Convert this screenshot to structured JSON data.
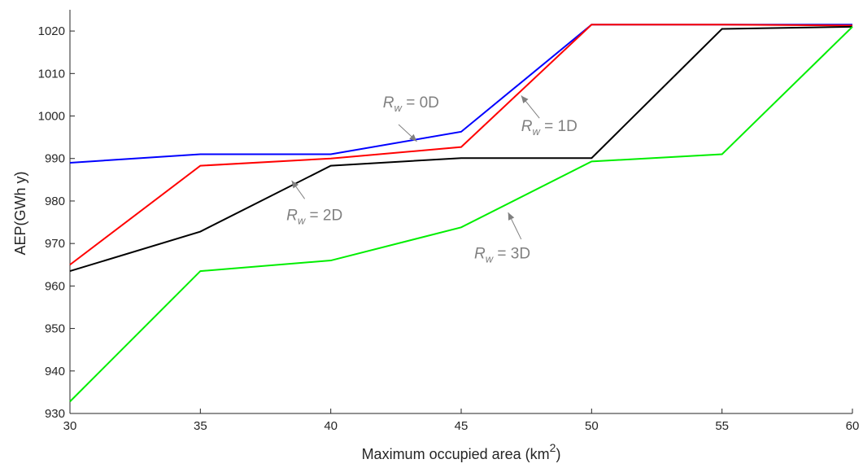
{
  "chart_data": {
    "type": "line",
    "x": [
      30,
      35,
      40,
      45,
      50,
      55,
      60
    ],
    "x_ticks": [
      "30",
      "35",
      "40",
      "45",
      "50",
      "55",
      "60"
    ],
    "y_ticks": [
      "930",
      "940",
      "950",
      "960",
      "970",
      "980",
      "990",
      "1000",
      "1010",
      "1020"
    ],
    "xlim": [
      30,
      60
    ],
    "ylim": [
      930,
      1025
    ],
    "xlabel": "Maximum occupied area (km",
    "xlabel_sup": "2",
    "xlabel_end": ")",
    "ylabel": "AEP(GWh y)",
    "grid": false,
    "series": [
      {
        "color": "#0000ff",
        "values": [
          989.0,
          991.0,
          991.0,
          996.3,
          1021.5,
          1021.5,
          1021.5
        ]
      },
      {
        "color": "#ff0000",
        "values": [
          965.0,
          988.3,
          990.0,
          992.7,
          1021.5,
          1021.5,
          1021.3
        ]
      },
      {
        "color": "#000000",
        "values": [
          963.5,
          972.8,
          988.3,
          990.1,
          990.1,
          1020.5,
          1021.0
        ]
      },
      {
        "color": "#00ee00",
        "values": [
          932.8,
          963.5,
          966.0,
          973.8,
          989.3,
          991.0,
          1021.0
        ]
      }
    ],
    "annotations": [
      {
        "label_main": "R",
        "label_sub": "w",
        "label_rest": " = 0D",
        "text_x": 42.0,
        "text_y": 1002.0,
        "arrow_from": [
          42.6,
          998.0
        ],
        "arrow_to": [
          43.3,
          994.0
        ]
      },
      {
        "label_main": "R",
        "label_sub": "w",
        "label_rest": " = 1D",
        "text_x": 47.3,
        "text_y": 996.5,
        "arrow_from": [
          48.0,
          999.5
        ],
        "arrow_to": [
          47.3,
          1004.8
        ]
      },
      {
        "label_main": "R",
        "label_sub": "w",
        "label_rest": " = 2D",
        "text_x": 38.3,
        "text_y": 975.5,
        "arrow_from": [
          39.0,
          980.5
        ],
        "arrow_to": [
          38.5,
          984.8
        ]
      },
      {
        "label_main": "R",
        "label_sub": "w",
        "label_rest": " = 3D",
        "text_x": 45.5,
        "text_y": 966.5,
        "arrow_from": [
          47.3,
          971.0
        ],
        "arrow_to": [
          46.8,
          977.3
        ]
      }
    ]
  }
}
